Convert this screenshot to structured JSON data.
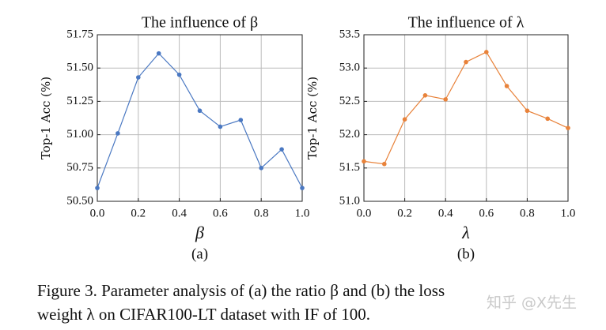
{
  "chart_data": [
    {
      "type": "line",
      "title": "The influence of β",
      "x_label": "β",
      "y_label": "Top-1 Acc (%)",
      "sublabel": "(a)",
      "x": [
        0,
        0.1,
        0.2,
        0.3,
        0.4,
        0.5,
        0.6,
        0.7,
        0.8,
        0.9,
        1
      ],
      "series": [
        {
          "name": "β",
          "color": "#4a78c2",
          "values": [
            50.6,
            51.01,
            51.43,
            51.61,
            51.45,
            51.18,
            51.06,
            51.11,
            50.75,
            50.89,
            50.6
          ]
        }
      ],
      "xlim": [
        0,
        1
      ],
      "xticks": [
        {
          "value": 0,
          "label": "0.0"
        },
        0.2,
        0.4,
        0.6,
        0.8,
        {
          "value": 1,
          "label": "1.0"
        }
      ],
      "ylim": [
        50.5,
        51.75
      ],
      "yticks": [
        {
          "value": 50.5,
          "label": "50.50"
        },
        50.75,
        {
          "value": 51,
          "label": "51.00"
        },
        51.25,
        {
          "value": 51.5,
          "label": "51.50"
        },
        51.75
      ],
      "grid": true
    },
    {
      "type": "line",
      "title": "The influence of λ",
      "x_label": "λ",
      "y_label": "Top-1 Acc (%)",
      "sublabel": "(b)",
      "x": [
        0,
        0.1,
        0.2,
        0.3,
        0.4,
        0.5,
        0.6,
        0.7,
        0.8,
        0.9,
        1
      ],
      "series": [
        {
          "name": "λ",
          "color": "#e8823a",
          "values": [
            51.6,
            51.56,
            52.23,
            52.59,
            52.53,
            53.09,
            53.24,
            52.73,
            52.36,
            52.24,
            52.1
          ]
        }
      ],
      "xlim": [
        0,
        1
      ],
      "xticks": [
        {
          "value": 0,
          "label": "0.0"
        },
        0.2,
        0.4,
        0.6,
        0.8,
        {
          "value": 1,
          "label": "1.0"
        }
      ],
      "ylim": [
        51,
        53.5
      ],
      "yticks": [
        {
          "value": 51,
          "label": "51.0"
        },
        51.5,
        {
          "value": 52,
          "label": "52.0"
        },
        52.5,
        {
          "value": 53,
          "label": "53.0"
        },
        53.5
      ],
      "grid": true
    }
  ],
  "caption": [
    "Figure 3.  Parameter analysis of (a) the ratio β and (b) the loss",
    "weight λ on CIFAR100-LT dataset with IF of 100."
  ],
  "watermark": "知乎 @X先生"
}
